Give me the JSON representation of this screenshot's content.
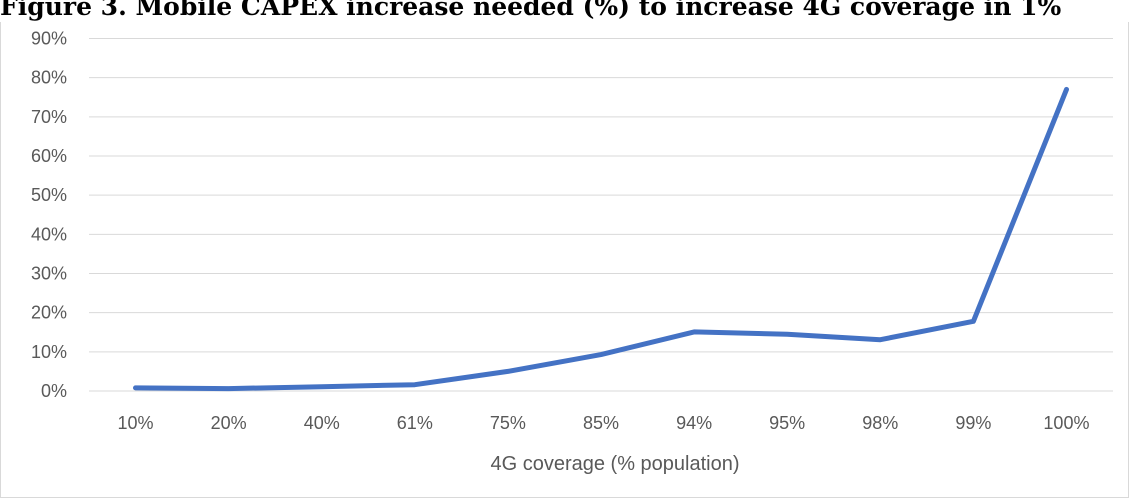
{
  "chart_data": {
    "type": "line",
    "title": "Figure 3. Mobile CAPEX increase needed (%) to increase 4G coverage in 1%",
    "xlabel": "4G coverage (% population)",
    "ylabel": "",
    "categories": [
      "10%",
      "20%",
      "40%",
      "61%",
      "75%",
      "85%",
      "94%",
      "95%",
      "98%",
      "99%",
      "100%"
    ],
    "series": [
      {
        "values": [
          0.8,
          0.6,
          1.1,
          1.6,
          5.0,
          9.3,
          15.1,
          14.5,
          13.1,
          17.8,
          77.0
        ]
      }
    ],
    "ylim": [
      0,
      90
    ],
    "yticks": [
      "0%",
      "10%",
      "20%",
      "30%",
      "40%",
      "50%",
      "60%",
      "70%",
      "80%",
      "90%"
    ],
    "grid": true,
    "legend": "none",
    "colors": {
      "line": "#4472c4",
      "grid": "#d9d9d9",
      "text": "#595959"
    }
  }
}
